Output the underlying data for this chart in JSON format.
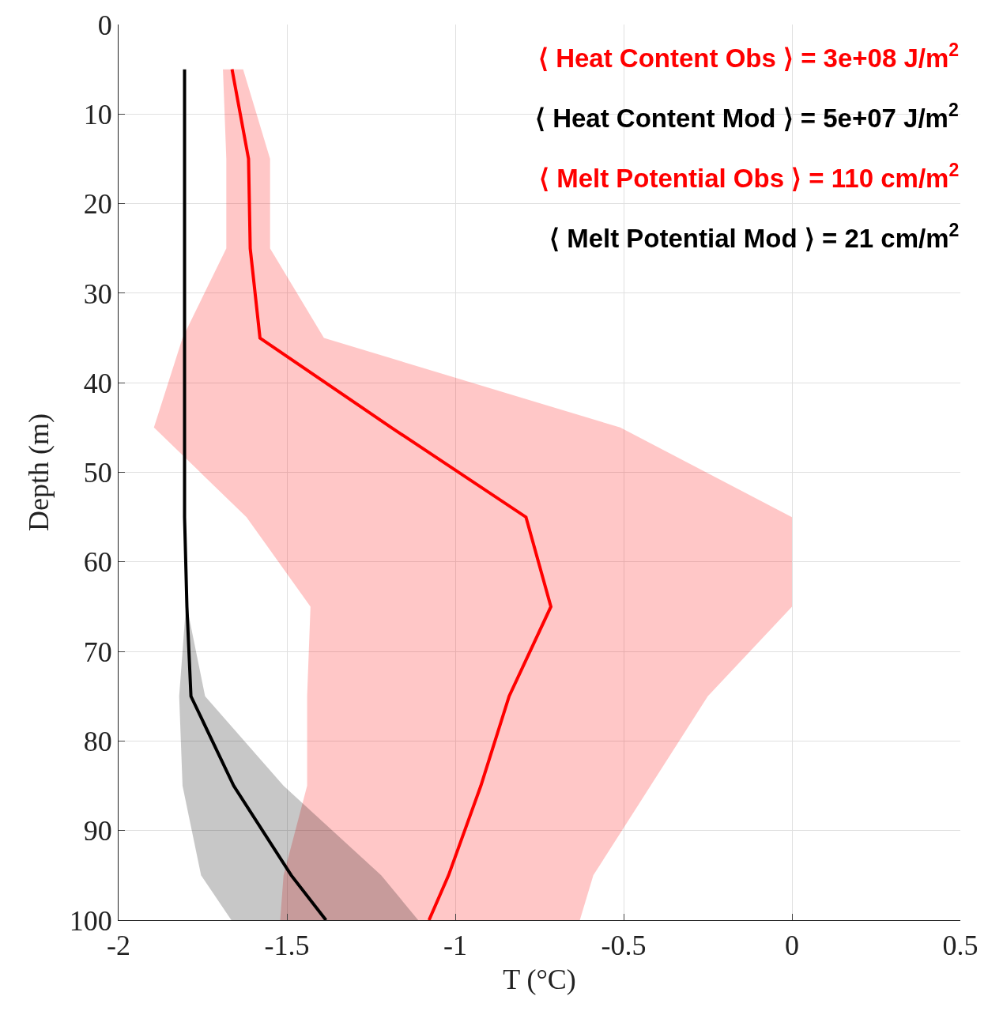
{
  "chart_data": {
    "type": "line",
    "orientation": "horizontal",
    "xlabel": "T (°C)",
    "ylabel": "Depth (m)",
    "xlim": [
      -2,
      0.5
    ],
    "xticks": [
      -2,
      -1.5,
      -1,
      -0.5,
      0,
      0.5
    ],
    "ylim": [
      100,
      0
    ],
    "yticks": [
      0,
      10,
      20,
      30,
      40,
      50,
      60,
      70,
      80,
      90,
      100
    ],
    "grid": true,
    "marker": "none",
    "line_style": "solid",
    "series": [
      {
        "color": "#ff0000",
        "x": [
          5,
          15,
          25,
          35,
          45,
          55,
          65,
          75,
          85,
          95,
          100
        ],
        "values": [
          -1.663,
          -1.614,
          -1.609,
          -1.58,
          -1.19,
          -0.79,
          -0.716,
          -0.84,
          -0.924,
          -1.02,
          -1.078
        ],
        "lower": [
          -1.69,
          -1.68,
          -1.68,
          -1.81,
          -1.895,
          -1.62,
          -1.43,
          -1.44,
          -1.44,
          -1.51,
          -1.52
        ],
        "upper": [
          -1.63,
          -1.55,
          -1.55,
          -1.39,
          -0.51,
          0,
          0,
          -0.25,
          -0.42,
          -0.59,
          -0.63
        ]
      },
      {
        "color": "#000000",
        "x": [
          5,
          15,
          25,
          35,
          45,
          55,
          65,
          75,
          85,
          95,
          100
        ],
        "values": [
          -1.804,
          -1.804,
          -1.804,
          -1.804,
          -1.804,
          -1.804,
          -1.797,
          -1.785,
          -1.658,
          -1.487,
          -1.384
        ],
        "lower": [
          null,
          null,
          null,
          null,
          null,
          -1.804,
          -1.8,
          -1.82,
          -1.81,
          -1.755,
          -1.665
        ],
        "upper": [
          null,
          null,
          null,
          null,
          null,
          -1.804,
          -1.797,
          -1.743,
          -1.51,
          -1.22,
          -1.11
        ]
      }
    ],
    "annotations": [
      "⟨ Heat Content Obs ⟩ = 3e+08 J/m$^{2}$",
      "⟨ Heat Content Mod ⟩ = 5e+07 J/m$^{2}$",
      "⟨ Melt Potential Obs ⟩ = 110 cm/m$^{2}$",
      "⟨ Melt Potential Mod ⟩ = 21 cm/m$^{2}$"
    ]
  }
}
